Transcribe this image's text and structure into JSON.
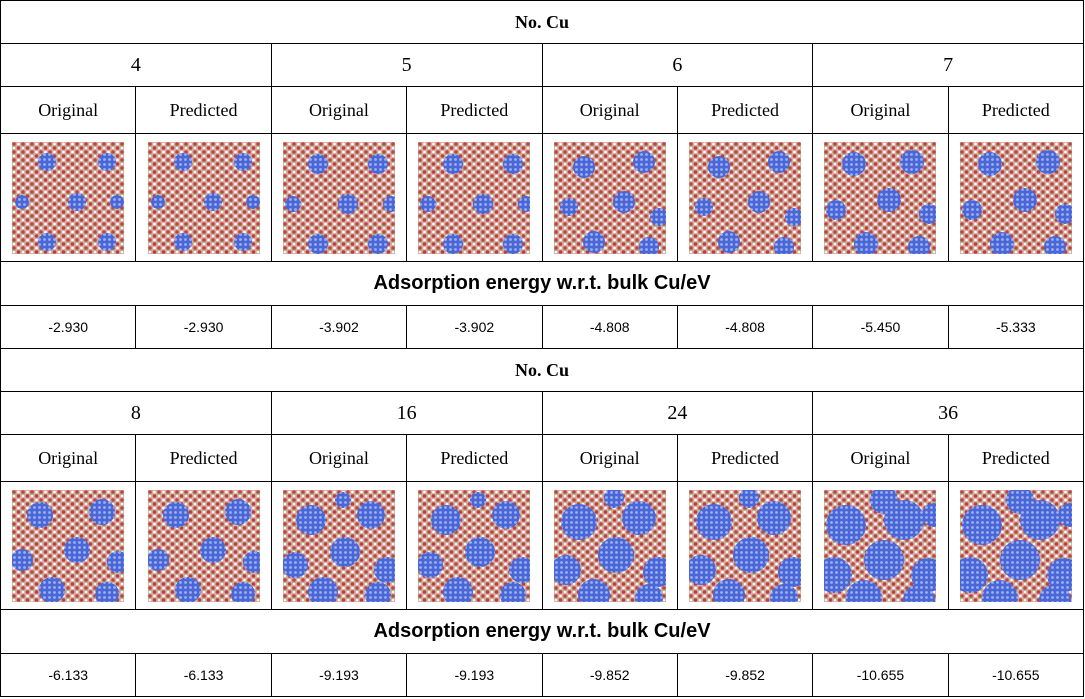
{
  "blocks": [
    {
      "header": "No. Cu",
      "groups": [
        {
          "label": "4",
          "columns": [
            "Original",
            "Predicted"
          ]
        },
        {
          "label": "5",
          "columns": [
            "Original",
            "Predicted"
          ]
        },
        {
          "label": "6",
          "columns": [
            "Original",
            "Predicted"
          ]
        },
        {
          "label": "7",
          "columns": [
            "Original",
            "Predicted"
          ]
        }
      ],
      "energy_header": "Adsorption energy w.r.t. bulk Cu/eV",
      "energies": [
        "-2.930",
        "-2.930",
        "-3.902",
        "-3.902",
        "-4.808",
        "-4.808",
        "-5.450",
        "-5.333"
      ]
    },
    {
      "header": "No. Cu",
      "groups": [
        {
          "label": "8",
          "columns": [
            "Original",
            "Predicted"
          ]
        },
        {
          "label": "16",
          "columns": [
            "Original",
            "Predicted"
          ]
        },
        {
          "label": "24",
          "columns": [
            "Original",
            "Predicted"
          ]
        },
        {
          "label": "36",
          "columns": [
            "Original",
            "Predicted"
          ]
        }
      ],
      "energy_header": "Adsorption energy w.r.t. bulk Cu/eV",
      "energies": [
        "-6.133",
        "-6.133",
        "-9.193",
        "-9.193",
        "-9.852",
        "-9.852",
        "-10.655",
        "-10.655"
      ]
    }
  ]
}
